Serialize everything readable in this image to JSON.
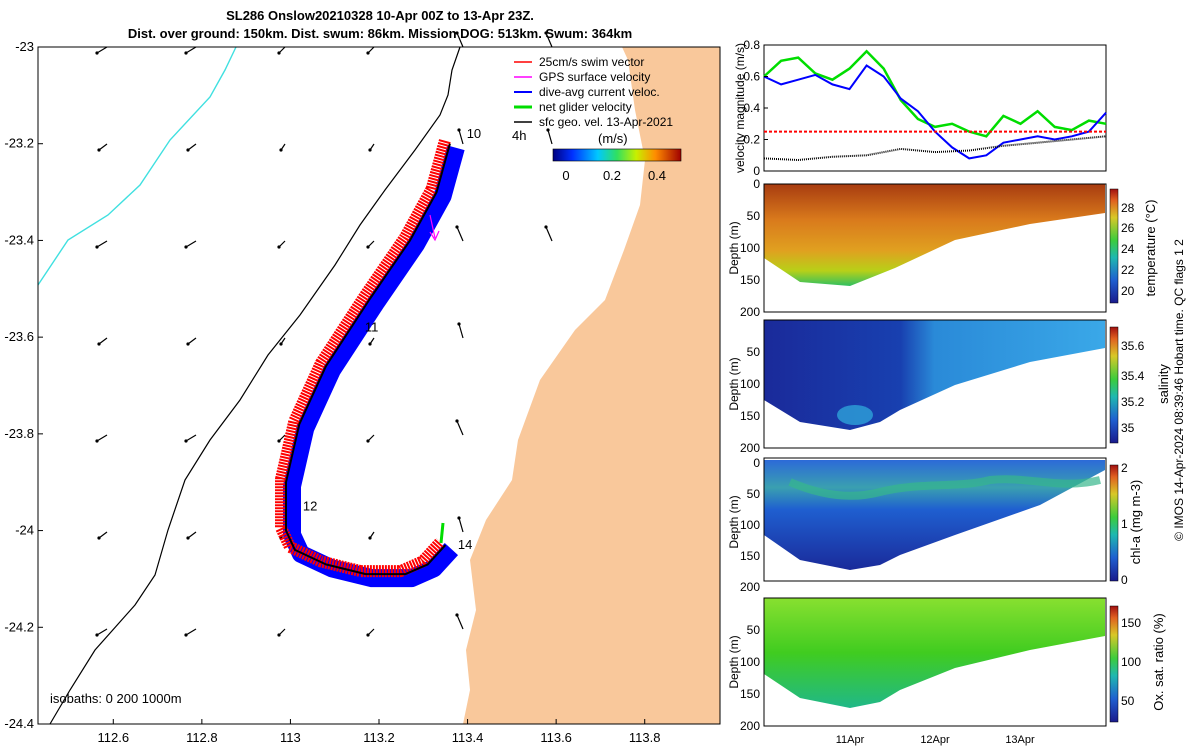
{
  "header": {
    "title_line1": "SL286 Onslow20210328 10-Apr 00Z to 13-Apr 23Z.",
    "title_line2": "Dist. over ground: 150km. Dist. swum: 86km. Mission DOG: 513km. Swum: 364km"
  },
  "colors": {
    "land": "#f9c89b",
    "track_swim": "#ff0000",
    "track_current": "#0000ff",
    "net_velocity": "#00dd00",
    "gps_velocity": "#ff00ff",
    "isobath_shallow": "#40e0e0",
    "isobath": "#000000"
  },
  "chart_data": [
    {
      "type": "map",
      "xlim": [
        112.43,
        113.97
      ],
      "ylim": [
        -24.4,
        -23.0
      ],
      "xticks": [
        "112.6",
        "112.8",
        "113",
        "113.2",
        "113.4",
        "113.6",
        "113.8"
      ],
      "yticks": [
        "-23",
        "-23.2",
        "-23.4",
        "-23.6",
        "-23.8",
        "-24",
        "-24.2",
        "-24.4"
      ],
      "legend": [
        {
          "label": "25cm/s swim vector",
          "color": "#ff0000"
        },
        {
          "label": "GPS surface velocity",
          "color": "#ff00ff"
        },
        {
          "label": "dive-avg current veloc.",
          "color": "#0000ff"
        },
        {
          "label": "net glider velocity",
          "color": "#00dd00"
        },
        {
          "label": "sfc geo. vel. 13-Apr-2021",
          "color": "#000000"
        }
      ],
      "colorbar": {
        "label": "(m/s)",
        "ticks": [
          "0",
          "0.2",
          "0.4"
        ],
        "range": [
          0,
          0.5
        ],
        "interval_label": "4h"
      },
      "isobath_label": "isobaths: 0   200  1000m",
      "day_markers": [
        {
          "label": "10",
          "lon": 113.38,
          "lat": -23.18
        },
        {
          "label": "11",
          "lon": 113.15,
          "lat": -23.58
        },
        {
          "label": "12",
          "lon": 113.01,
          "lat": -23.95
        },
        {
          "label": "14",
          "lon": 113.36,
          "lat": -24.03
        }
      ],
      "track": [
        [
          113.36,
          -23.2
        ],
        [
          113.33,
          -23.3
        ],
        [
          113.27,
          -23.4
        ],
        [
          113.18,
          -23.52
        ],
        [
          113.08,
          -23.66
        ],
        [
          113.02,
          -23.78
        ],
        [
          112.99,
          -23.9
        ],
        [
          112.99,
          -24.0
        ],
        [
          113.01,
          -24.04
        ],
        [
          113.08,
          -24.07
        ],
        [
          113.17,
          -24.09
        ],
        [
          113.26,
          -24.09
        ],
        [
          113.31,
          -24.07
        ],
        [
          113.35,
          -24.03
        ]
      ]
    },
    {
      "type": "line",
      "ylabel": "velocity magnitude (m/s)",
      "ylim": [
        0,
        0.8
      ],
      "yticks": [
        "0",
        "0.2",
        "0.4",
        "0.6",
        "0.8"
      ],
      "series": [
        {
          "name": "net glider velocity",
          "color": "#00dd00",
          "x": [
            0,
            0.2,
            0.4,
            0.6,
            0.8,
            1.0,
            1.2,
            1.4,
            1.6,
            1.8,
            2.0,
            2.2,
            2.4,
            2.6,
            2.8,
            3.0,
            3.2,
            3.4,
            3.6,
            3.8,
            4.0
          ],
          "values": [
            0.6,
            0.7,
            0.72,
            0.62,
            0.58,
            0.65,
            0.76,
            0.65,
            0.45,
            0.33,
            0.28,
            0.3,
            0.25,
            0.22,
            0.35,
            0.3,
            0.38,
            0.28,
            0.26,
            0.32,
            0.3
          ]
        },
        {
          "name": "dive-avg current",
          "color": "#0000ff",
          "x": [
            0,
            0.2,
            0.4,
            0.6,
            0.8,
            1.0,
            1.2,
            1.4,
            1.6,
            1.8,
            2.0,
            2.2,
            2.4,
            2.6,
            2.8,
            3.0,
            3.2,
            3.4,
            3.6,
            3.8,
            4.0
          ],
          "values": [
            0.6,
            0.55,
            0.58,
            0.61,
            0.55,
            0.52,
            0.67,
            0.6,
            0.46,
            0.38,
            0.25,
            0.15,
            0.08,
            0.1,
            0.18,
            0.2,
            0.22,
            0.2,
            0.22,
            0.25,
            0.37
          ]
        },
        {
          "name": "swim speed",
          "color": "#ff0000",
          "x": [
            0,
            4.0
          ],
          "values": [
            0.25,
            0.25
          ]
        },
        {
          "name": "sfc geo. vel.",
          "color": "#000000",
          "x": [
            0,
            0.4,
            0.8,
            1.2,
            1.6,
            2.0,
            2.4,
            2.8,
            3.2,
            3.6,
            4.0
          ],
          "values": [
            0.08,
            0.07,
            0.09,
            0.1,
            0.14,
            0.12,
            0.13,
            0.16,
            0.18,
            0.2,
            0.22
          ]
        }
      ]
    },
    {
      "type": "heatmap",
      "ylabel": "Depth (m)",
      "yticks": [
        "0",
        "50",
        "100",
        "150",
        "200"
      ],
      "colorbar_label": "temperature (°C)",
      "colorbar_ticks": [
        "20",
        "22",
        "24",
        "26",
        "28"
      ]
    },
    {
      "type": "heatmap",
      "ylabel": "Depth (m)",
      "yticks": [
        "50",
        "100",
        "150",
        "200"
      ],
      "colorbar_label": "salinity",
      "colorbar_ticks": [
        "35",
        "35.2",
        "35.4",
        "35.6"
      ]
    },
    {
      "type": "heatmap",
      "ylabel": "Depth (m)",
      "yticks": [
        "0",
        "50",
        "100",
        "150",
        "200"
      ],
      "colorbar_label": "chl-a (mg m-3)",
      "colorbar_ticks": [
        "0",
        "1",
        "2"
      ]
    },
    {
      "type": "heatmap",
      "ylabel": "Depth (m)",
      "yticks": [
        "50",
        "100",
        "150",
        "200"
      ],
      "colorbar_label": "Ox. sat. ratio (%)",
      "colorbar_ticks": [
        "50",
        "100",
        "150"
      ],
      "xticks": [
        "11Apr",
        "12Apr",
        "13Apr"
      ]
    }
  ],
  "side_note": "© IMOS 14-Apr-2024 08:39:46 Hobart time. QC flags 1  2"
}
